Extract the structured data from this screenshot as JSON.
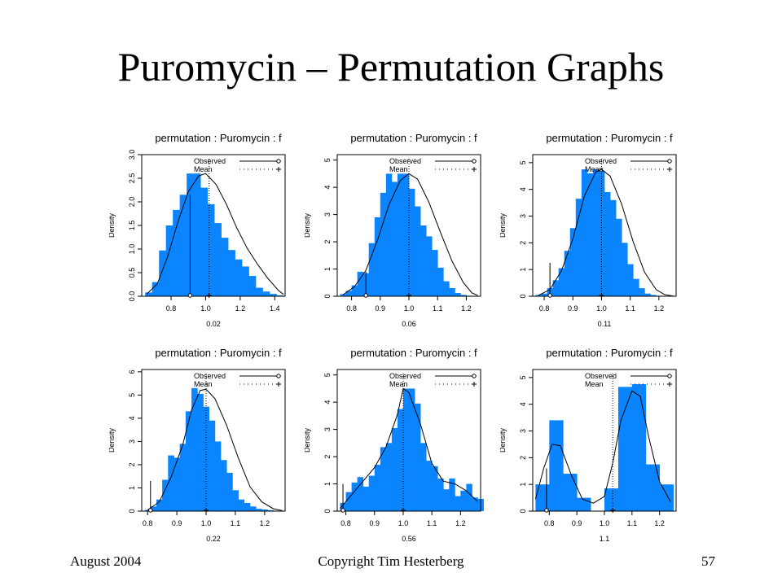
{
  "title": "Puromycin – Permutation Graphs",
  "footer": {
    "date": "August 2004",
    "copyright": "Copyright Tim Hesterberg",
    "page_number": "57"
  },
  "colors": {
    "bar_fill": "#0a84ff",
    "line": "#000000",
    "background": "#ffffff"
  },
  "legend": {
    "observed_label": "Observed",
    "mean_label": "Mean"
  },
  "chart_data": [
    {
      "type": "bar",
      "title": "permutation : Puromycin : f",
      "xlabel": "0.02",
      "ylabel": "Density",
      "xlim": [
        0.63,
        1.46
      ],
      "ylim": [
        0,
        3.0
      ],
      "xticks": [
        0.8,
        1.0,
        1.2,
        1.4
      ],
      "xtick_labels": [
        "0.8",
        "1.0",
        "1.2",
        "1.4"
      ],
      "yticks": [
        0,
        0.5,
        1.0,
        1.5,
        2.0,
        2.5,
        3.0
      ],
      "ytick_labels": [
        "0.0",
        "0.5",
        "1.0",
        "1.5",
        "2.0",
        "2.5",
        "3.0"
      ],
      "bin_start": 0.65,
      "bin_width": 0.04,
      "values": [
        0.08,
        0.3,
        0.97,
        1.5,
        1.83,
        2.15,
        2.6,
        2.6,
        2.3,
        1.95,
        1.55,
        1.24,
        0.98,
        0.78,
        0.63,
        0.43,
        0.18,
        0.1,
        0.05,
        0.02
      ],
      "density_curve": [
        [
          0.66,
          0.05
        ],
        [
          0.72,
          0.26
        ],
        [
          0.78,
          0.84
        ],
        [
          0.84,
          1.58
        ],
        [
          0.9,
          2.22
        ],
        [
          0.96,
          2.55
        ],
        [
          1.0,
          2.6
        ],
        [
          1.06,
          2.37
        ],
        [
          1.12,
          1.95
        ],
        [
          1.18,
          1.45
        ],
        [
          1.24,
          1.02
        ],
        [
          1.3,
          0.68
        ],
        [
          1.36,
          0.38
        ],
        [
          1.42,
          0.13
        ],
        [
          1.45,
          0.04
        ]
      ],
      "observed": 0.91,
      "observed_line_top": 2.15,
      "mean": 1.02,
      "legend_position": "top-right"
    },
    {
      "type": "bar",
      "title": "permutation : Puromycin : f",
      "xlabel": "0.06",
      "ylabel": "Density",
      "xlim": [
        0.75,
        1.25
      ],
      "ylim": [
        0,
        5.2
      ],
      "xticks": [
        0.8,
        0.9,
        1.0,
        1.1,
        1.2
      ],
      "xtick_labels": [
        "0.8",
        "0.9",
        "1.0",
        "1.1",
        "1.2"
      ],
      "yticks": [
        0,
        1,
        2,
        3,
        4,
        5
      ],
      "ytick_labels": [
        "0",
        "1",
        "2",
        "3",
        "4",
        "5"
      ],
      "bin_start": 0.76,
      "bin_width": 0.02,
      "values": [
        0.08,
        0.2,
        0.4,
        0.9,
        0.85,
        1.95,
        2.9,
        3.8,
        4.5,
        4.2,
        4.5,
        4.5,
        3.95,
        3.3,
        2.6,
        2.2,
        1.7,
        1.05,
        0.55,
        0.3,
        0.12,
        0.05,
        0.02,
        0.01
      ],
      "density_curve": [
        [
          0.77,
          0.05
        ],
        [
          0.81,
          0.35
        ],
        [
          0.85,
          0.95
        ],
        [
          0.89,
          2.05
        ],
        [
          0.93,
          3.35
        ],
        [
          0.97,
          4.25
        ],
        [
          1.0,
          4.5
        ],
        [
          1.03,
          4.3
        ],
        [
          1.07,
          3.45
        ],
        [
          1.11,
          2.35
        ],
        [
          1.15,
          1.3
        ],
        [
          1.19,
          0.5
        ],
        [
          1.22,
          0.12
        ],
        [
          1.24,
          0.03
        ]
      ],
      "observed": 0.85,
      "observed_line_top": 0.9,
      "mean": 1.0,
      "legend_position": "top-right"
    },
    {
      "type": "bar",
      "title": "permutation : Puromycin : f",
      "xlabel": "0.11",
      "ylabel": "Density",
      "xlim": [
        0.76,
        1.26
      ],
      "ylim": [
        0,
        5.3
      ],
      "xticks": [
        0.8,
        0.9,
        1.0,
        1.1,
        1.2
      ],
      "xtick_labels": [
        "0.8",
        "0.9",
        "1.0",
        "1.1",
        "1.2"
      ],
      "yticks": [
        0,
        1,
        2,
        3,
        4,
        5
      ],
      "ytick_labels": [
        "0",
        "1",
        "2",
        "3",
        "4",
        "5"
      ],
      "bin_start": 0.77,
      "bin_width": 0.02,
      "values": [
        0.05,
        0.1,
        0.3,
        0.6,
        1.05,
        1.7,
        2.55,
        3.65,
        4.75,
        4.6,
        4.75,
        4.7,
        3.9,
        3.6,
        2.9,
        2.0,
        1.2,
        0.65,
        0.3,
        0.1,
        0.05,
        0.02,
        0.01,
        0.01
      ],
      "density_curve": [
        [
          0.78,
          0.03
        ],
        [
          0.82,
          0.25
        ],
        [
          0.86,
          0.95
        ],
        [
          0.9,
          2.15
        ],
        [
          0.94,
          3.75
        ],
        [
          0.98,
          4.65
        ],
        [
          1.0,
          4.75
        ],
        [
          1.03,
          4.5
        ],
        [
          1.07,
          3.45
        ],
        [
          1.11,
          2.05
        ],
        [
          1.15,
          0.9
        ],
        [
          1.19,
          0.25
        ],
        [
          1.22,
          0.06
        ],
        [
          1.25,
          0.01
        ]
      ],
      "observed": 0.82,
      "observed_line_top": 1.25,
      "mean": 1.0,
      "legend_position": "top-right"
    },
    {
      "type": "bar",
      "title": "permutation : Puromycin : f",
      "xlabel": "0.22",
      "ylabel": "Density",
      "xlim": [
        0.78,
        1.27
      ],
      "ylim": [
        0,
        6.1
      ],
      "xticks": [
        0.8,
        0.9,
        1.0,
        1.1,
        1.2
      ],
      "xtick_labels": [
        "0.8",
        "0.9",
        "1.0",
        "1.1",
        "1.2"
      ],
      "yticks": [
        0,
        1,
        2,
        3,
        4,
        5,
        6
      ],
      "ytick_labels": [
        "0",
        "1",
        "2",
        "3",
        "4",
        "5",
        "6"
      ],
      "bin_start": 0.79,
      "bin_width": 0.02,
      "values": [
        0.05,
        0.2,
        0.5,
        1.35,
        2.4,
        2.3,
        2.9,
        4.3,
        5.3,
        5.05,
        4.5,
        3.9,
        3.0,
        2.2,
        1.65,
        0.9,
        0.5,
        0.35,
        0.2,
        0.1,
        0.07,
        0.04,
        0.02,
        0.01
      ],
      "density_curve": [
        [
          0.8,
          0.05
        ],
        [
          0.84,
          0.4
        ],
        [
          0.88,
          1.45
        ],
        [
          0.92,
          2.85
        ],
        [
          0.95,
          4.35
        ],
        [
          0.98,
          5.2
        ],
        [
          1.0,
          5.25
        ],
        [
          1.03,
          4.85
        ],
        [
          1.07,
          3.7
        ],
        [
          1.11,
          2.3
        ],
        [
          1.15,
          1.05
        ],
        [
          1.19,
          0.4
        ],
        [
          1.23,
          0.1
        ],
        [
          1.26,
          0.02
        ]
      ],
      "observed": 0.81,
      "observed_line_top": 1.3,
      "mean": 1.0,
      "legend_position": "top-right"
    },
    {
      "type": "bar",
      "title": "permutation : Puromycin : f",
      "xlabel": "0.56",
      "ylabel": "Density",
      "xlim": [
        0.77,
        1.27
      ],
      "ylim": [
        0,
        5.2
      ],
      "xticks": [
        0.8,
        0.9,
        1.0,
        1.1,
        1.2
      ],
      "xtick_labels": [
        "0.8",
        "0.9",
        "1.0",
        "1.1",
        "1.2"
      ],
      "yticks": [
        0,
        1,
        2,
        3,
        4,
        5
      ],
      "ytick_labels": [
        "0",
        "1",
        "2",
        "3",
        "4",
        "5"
      ],
      "bin_start": 0.78,
      "bin_width": 0.02,
      "values": [
        0.3,
        0.7,
        1.05,
        1.25,
        0.9,
        1.3,
        1.7,
        2.35,
        2.5,
        3.05,
        3.75,
        4.5,
        4.5,
        3.95,
        2.5,
        1.85,
        1.65,
        1.2,
        0.8,
        1.2,
        0.55,
        0.75,
        1.0,
        0.5,
        0.45
      ],
      "density_curve": [
        [
          0.78,
          0.1
        ],
        [
          0.82,
          0.6
        ],
        [
          0.86,
          1.1
        ],
        [
          0.9,
          1.6
        ],
        [
          0.94,
          2.35
        ],
        [
          0.98,
          3.55
        ],
        [
          1.0,
          4.5
        ],
        [
          1.02,
          4.35
        ],
        [
          1.06,
          3.2
        ],
        [
          1.1,
          1.75
        ],
        [
          1.14,
          1.1
        ],
        [
          1.18,
          1.0
        ],
        [
          1.22,
          0.75
        ],
        [
          1.26,
          0.35
        ]
      ],
      "observed": 0.79,
      "observed_line_top": 1.0,
      "mean": 1.0,
      "legend_position": "top-right"
    },
    {
      "type": "bar",
      "title": "permutation : Puromycin : f",
      "xlabel": "1.1",
      "ylabel": "Density",
      "xlim": [
        0.74,
        1.26
      ],
      "ylim": [
        0,
        5.3
      ],
      "xticks": [
        0.8,
        0.9,
        1.0,
        1.1,
        1.2
      ],
      "xtick_labels": [
        "0.8",
        "0.9",
        "1.0",
        "1.1",
        "1.2"
      ],
      "yticks": [
        0,
        1,
        2,
        3,
        4,
        5
      ],
      "ytick_labels": [
        "0",
        "1",
        "2",
        "3",
        "4",
        "5"
      ],
      "bin_start": 0.75,
      "bin_width": 0.05,
      "values": [
        1.0,
        3.4,
        1.4,
        0.5,
        0.0,
        0.85,
        4.65,
        4.75,
        1.75,
        1.0
      ],
      "density_curve": [
        [
          0.75,
          0.45
        ],
        [
          0.78,
          1.6
        ],
        [
          0.81,
          2.5
        ],
        [
          0.84,
          2.45
        ],
        [
          0.88,
          1.35
        ],
        [
          0.92,
          0.45
        ],
        [
          0.96,
          0.3
        ],
        [
          1.0,
          0.55
        ],
        [
          1.03,
          1.8
        ],
        [
          1.06,
          3.4
        ],
        [
          1.1,
          4.5
        ],
        [
          1.13,
          4.3
        ],
        [
          1.16,
          2.8
        ],
        [
          1.2,
          1.1
        ],
        [
          1.24,
          0.35
        ]
      ],
      "observed": 0.79,
      "observed_line_top": 1.6,
      "mean": 1.03,
      "legend_position": "top-right"
    }
  ]
}
